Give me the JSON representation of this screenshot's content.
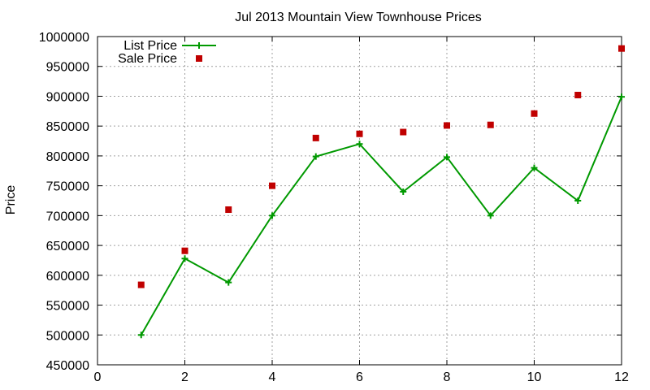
{
  "chart_data": {
    "type": "line",
    "title": "Jul 2013 Mountain View Townhouse Prices",
    "xlabel": "",
    "ylabel": "Price",
    "xlim": [
      0,
      12
    ],
    "ylim": [
      450000,
      1000000
    ],
    "x_ticks": [
      0,
      2,
      4,
      6,
      8,
      10,
      12
    ],
    "y_ticks": [
      450000,
      500000,
      550000,
      600000,
      650000,
      700000,
      750000,
      800000,
      850000,
      900000,
      950000,
      1000000
    ],
    "grid": true,
    "legend_position": "top-left",
    "x": [
      1,
      2,
      3,
      4,
      5,
      6,
      7,
      8,
      9,
      10,
      11,
      12
    ],
    "series": [
      {
        "name": "List Price",
        "style": "line-with-plus-markers",
        "color": "#009900",
        "values": [
          500000,
          628000,
          588000,
          700000,
          799000,
          820000,
          740000,
          798000,
          700000,
          780000,
          725000,
          899000
        ]
      },
      {
        "name": "Sale Price",
        "style": "square-markers",
        "color": "#c00000",
        "values": [
          584000,
          641000,
          710000,
          750000,
          830000,
          837000,
          840000,
          851000,
          852000,
          871000,
          902000,
          980000
        ]
      }
    ]
  }
}
